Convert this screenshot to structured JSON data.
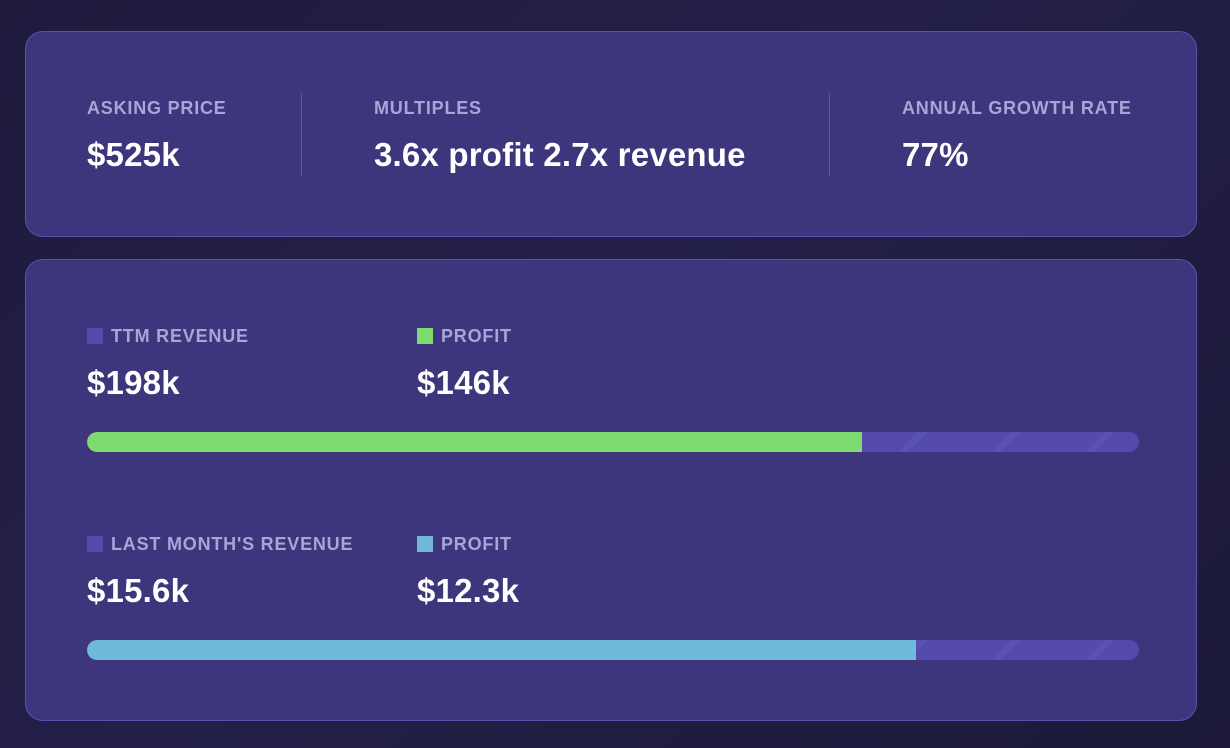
{
  "summary": {
    "asking_price": {
      "label": "ASKING PRICE",
      "value": "$525k"
    },
    "multiples": {
      "label": "MULTIPLES",
      "value": "3.6x profit 2.7x revenue"
    },
    "growth": {
      "label": "ANNUAL GROWTH RATE",
      "value": "77%"
    }
  },
  "ttm": {
    "revenue_label": "TTM REVENUE",
    "revenue_value": "$198k",
    "profit_label": "PROFIT",
    "profit_value": "$146k",
    "profit_fraction": 0.737,
    "revenue_color": "#544aae",
    "profit_color": "#7edb6f"
  },
  "last_month": {
    "revenue_label": "LAST MONTH'S REVENUE",
    "revenue_value": "$15.6k",
    "profit_label": "PROFIT",
    "profit_value": "$12.3k",
    "profit_fraction": 0.788,
    "revenue_color": "#544aae",
    "profit_color": "#6fbadc"
  }
}
